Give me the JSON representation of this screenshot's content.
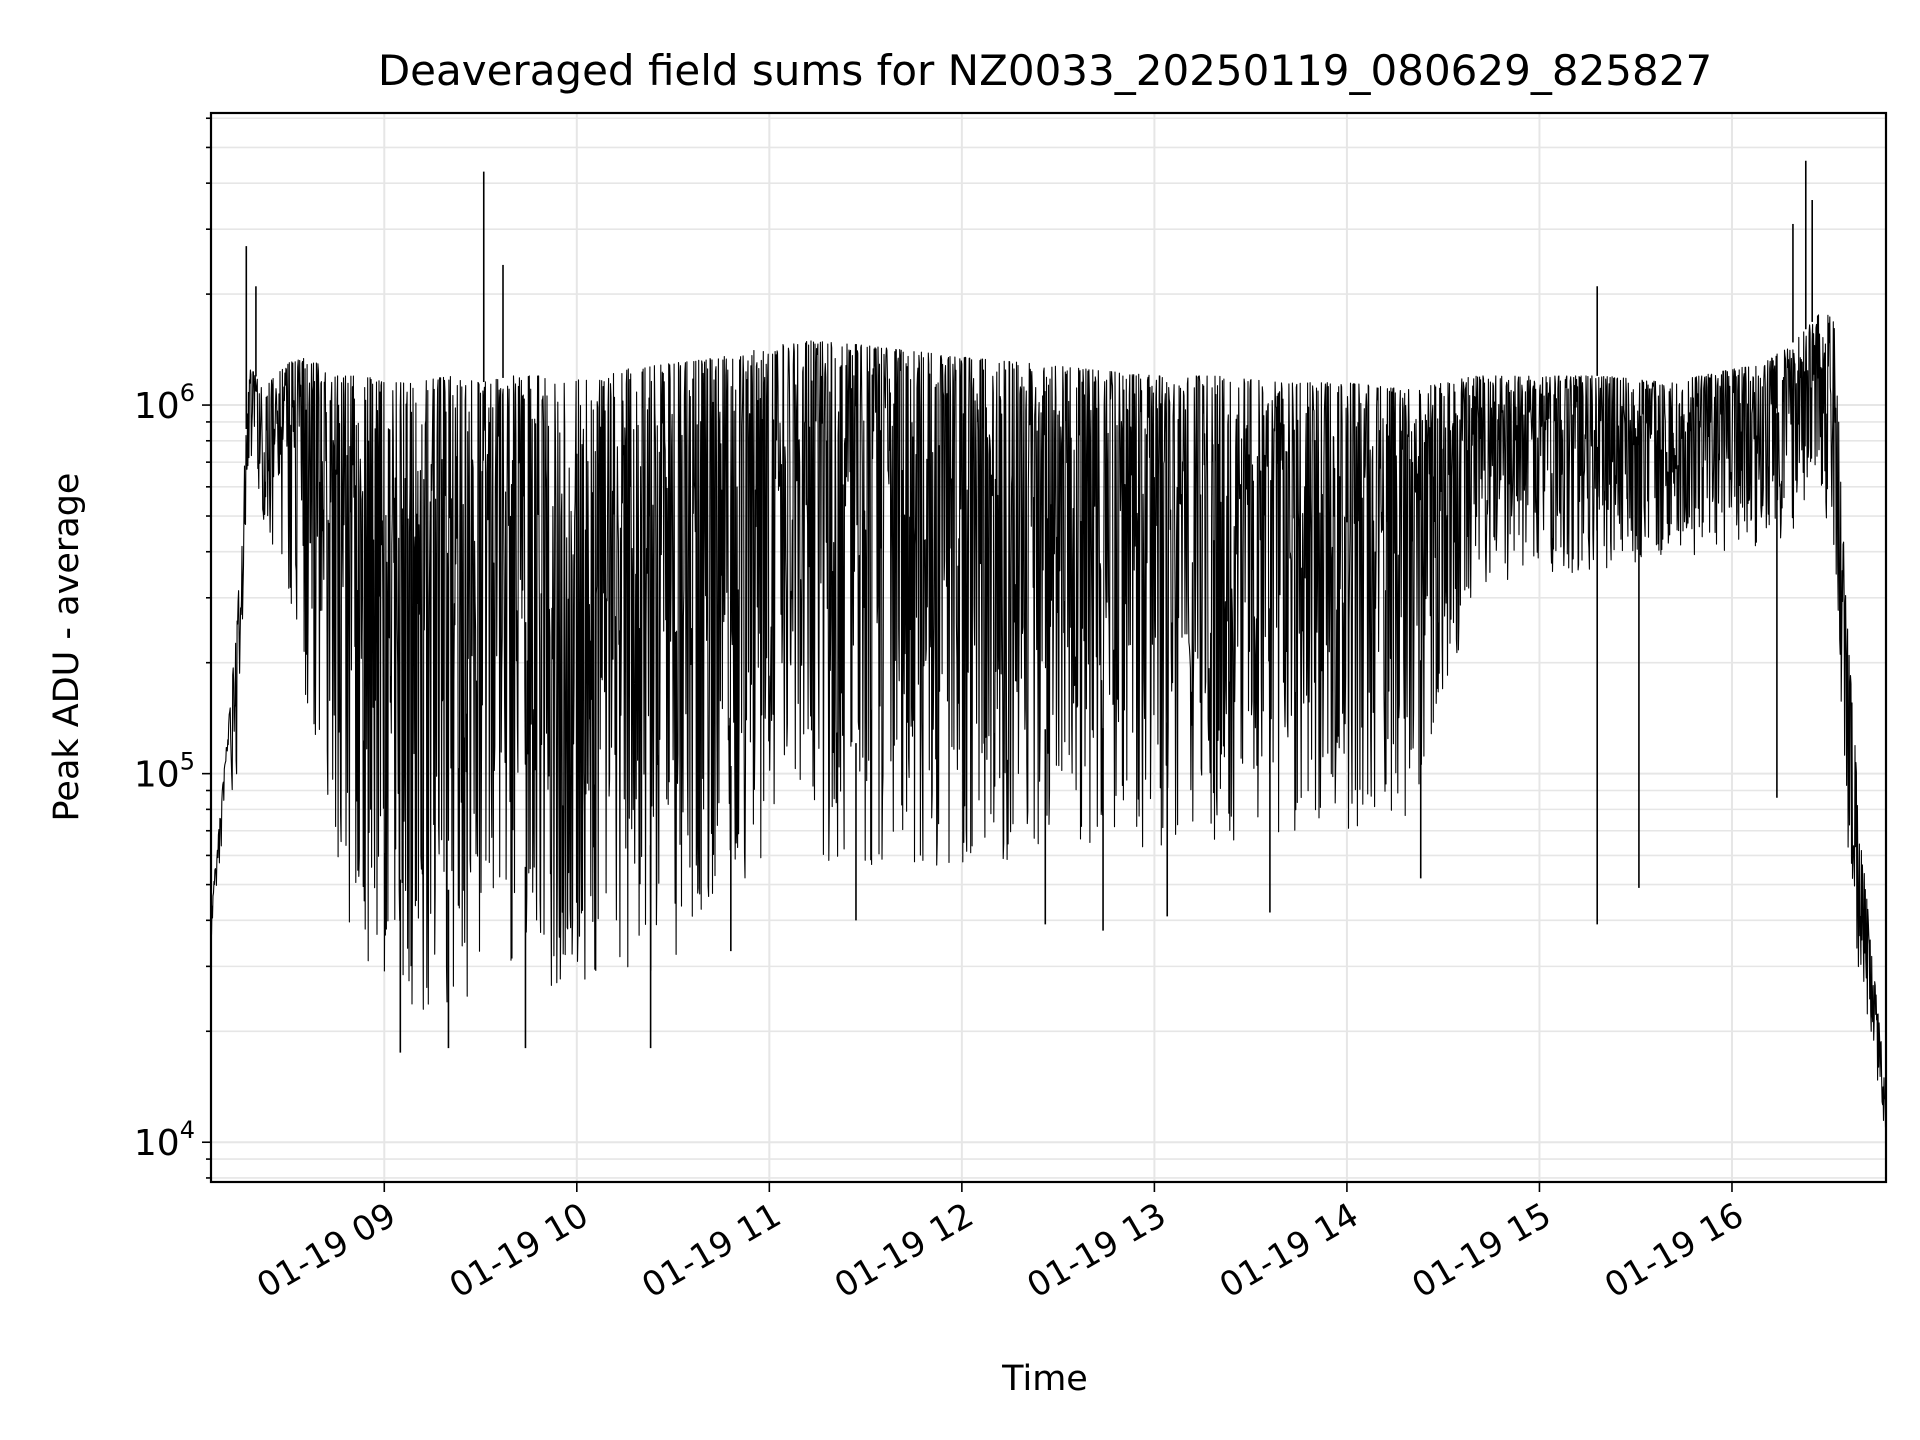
{
  "chart_data": {
    "type": "line",
    "title": "Deaveraged field sums for NZ0033_20250119_080629_825827",
    "xlabel": "Time",
    "ylabel": "Peak ADU - average",
    "yscale": "log",
    "ylim": [
      7800,
      6200000
    ],
    "xlim": [
      "2025-01-19 08:06",
      "2025-01-19 16:48"
    ],
    "x_ticks": [
      "01-19 09",
      "01-19 10",
      "01-19 11",
      "01-19 12",
      "01-19 13",
      "01-19 14",
      "01-19 15",
      "01-19 16"
    ],
    "y_ticks": [
      {
        "base": "10",
        "exp": "4"
      },
      {
        "base": "10",
        "exp": "5"
      },
      {
        "base": "10",
        "exp": "6"
      }
    ],
    "grid": true,
    "line_color": "#000000",
    "envelope": {
      "x": [
        "2025-01-19 08:06",
        "2025-01-19 08:10",
        "2025-01-19 08:14",
        "2025-01-19 08:18",
        "2025-01-19 08:22",
        "2025-01-19 08:26",
        "2025-01-19 08:30",
        "2025-01-19 08:36",
        "2025-01-19 08:42",
        "2025-01-19 08:48",
        "2025-01-19 08:54",
        "2025-01-19 09:00",
        "2025-01-19 09:10",
        "2025-01-19 09:20",
        "2025-01-19 09:30",
        "2025-01-19 09:40",
        "2025-01-19 09:50",
        "2025-01-19 10:00",
        "2025-01-19 10:15",
        "2025-01-19 10:30",
        "2025-01-19 10:45",
        "2025-01-19 11:00",
        "2025-01-19 11:15",
        "2025-01-19 11:30",
        "2025-01-19 11:45",
        "2025-01-19 12:00",
        "2025-01-19 12:20",
        "2025-01-19 12:40",
        "2025-01-19 13:00",
        "2025-01-19 13:20",
        "2025-01-19 13:40",
        "2025-01-19 14:00",
        "2025-01-19 14:20",
        "2025-01-19 14:40",
        "2025-01-19 15:00",
        "2025-01-19 15:20",
        "2025-01-19 15:40",
        "2025-01-19 16:00",
        "2025-01-19 16:10",
        "2025-01-19 16:20",
        "2025-01-19 16:28",
        "2025-01-19 16:32",
        "2025-01-19 16:36",
        "2025-01-19 16:40",
        "2025-01-19 16:44",
        "2025-01-19 16:48"
      ],
      "upper": [
        42000,
        100000,
        250000,
        1300000,
        1100000,
        1200000,
        1300000,
        1350000,
        1250000,
        1200000,
        1200000,
        1150000,
        1150000,
        1200000,
        1150000,
        1200000,
        1200000,
        1200000,
        1250000,
        1300000,
        1350000,
        1450000,
        1500000,
        1450000,
        1400000,
        1350000,
        1300000,
        1250000,
        1200000,
        1200000,
        1150000,
        1150000,
        1100000,
        1200000,
        1200000,
        1200000,
        1150000,
        1250000,
        1300000,
        1500000,
        1800000,
        1700000,
        250000,
        70000,
        30000,
        14000
      ],
      "lower": [
        35000,
        70000,
        100000,
        700000,
        500000,
        400000,
        300000,
        150000,
        90000,
        40000,
        30000,
        25000,
        22000,
        22000,
        24000,
        25000,
        26000,
        27000,
        28000,
        30000,
        45000,
        60000,
        55000,
        55000,
        55000,
        55000,
        60000,
        60000,
        62000,
        65000,
        65000,
        70000,
        75000,
        300000,
        350000,
        350000,
        380000,
        400000,
        420000,
        450000,
        500000,
        400000,
        60000,
        25000,
        18000,
        10000
      ]
    },
    "spikes": [
      {
        "x": "2025-01-19 08:17",
        "y": 2700000
      },
      {
        "x": "2025-01-19 08:20",
        "y": 2100000
      },
      {
        "x": "2025-01-19 09:31",
        "y": 4300000
      },
      {
        "x": "2025-01-19 09:37",
        "y": 2400000
      },
      {
        "x": "2025-01-19 15:18",
        "y": 2100000
      },
      {
        "x": "2025-01-19 16:19",
        "y": 3100000
      },
      {
        "x": "2025-01-19 16:23",
        "y": 4600000
      },
      {
        "x": "2025-01-19 16:25",
        "y": 3600000
      }
    ],
    "dips": [
      {
        "x": "2025-01-19 09:05",
        "y": 17500
      },
      {
        "x": "2025-01-19 09:20",
        "y": 18000
      },
      {
        "x": "2025-01-19 09:44",
        "y": 18000
      },
      {
        "x": "2025-01-19 10:23",
        "y": 18000
      },
      {
        "x": "2025-01-19 10:48",
        "y": 33000
      },
      {
        "x": "2025-01-19 11:27",
        "y": 40000
      },
      {
        "x": "2025-01-19 12:26",
        "y": 39000
      },
      {
        "x": "2025-01-19 12:44",
        "y": 37500
      },
      {
        "x": "2025-01-19 13:04",
        "y": 41000
      },
      {
        "x": "2025-01-19 13:36",
        "y": 42000
      },
      {
        "x": "2025-01-19 14:23",
        "y": 52000
      },
      {
        "x": "2025-01-19 15:18",
        "y": 39000
      },
      {
        "x": "2025-01-19 15:31",
        "y": 49000
      },
      {
        "x": "2025-01-19 16:14",
        "y": 86000
      }
    ]
  }
}
